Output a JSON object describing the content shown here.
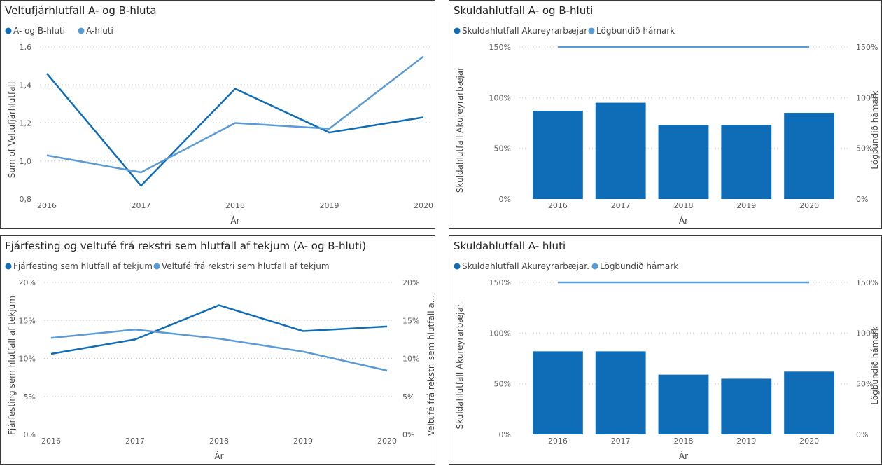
{
  "colors": {
    "dark": "#0f6db8",
    "light": "#5b9bd5",
    "bar": "#0f6db8"
  },
  "chart_data": [
    {
      "type": "line",
      "title": "Veltufjárhlutfall A- og B-hluta",
      "x": [
        "2016",
        "2017",
        "2018",
        "2019",
        "2020"
      ],
      "series": [
        {
          "name": "A- og B-hluti",
          "values": [
            1.46,
            0.87,
            1.38,
            1.15,
            1.23
          ]
        },
        {
          "name": "A-hluti",
          "values": [
            1.03,
            0.94,
            1.2,
            1.17,
            1.55
          ]
        }
      ],
      "xlabel": "Ár",
      "ylabel": "Sum of Veltufjárhlutfall",
      "ylim": [
        0.8,
        1.6
      ],
      "yticks": [
        "0,8",
        "1,0",
        "1,2",
        "1,4",
        "1,6"
      ],
      "grid": true,
      "legend": "top-left"
    },
    {
      "type": "bar",
      "title": "Skuldahlutfall A- og B-hluti",
      "categories": [
        "2016",
        "2017",
        "2018",
        "2019",
        "2020"
      ],
      "series": [
        {
          "name": "Skuldahlutfall Akureyrarbæjar",
          "kind": "bar",
          "values": [
            87,
            95,
            73,
            73,
            85
          ]
        },
        {
          "name": "Lögbundið hámark",
          "kind": "line",
          "values": [
            150,
            150,
            150,
            150,
            150
          ]
        }
      ],
      "xlabel": "Ár",
      "ylabel": "Skuldahlutfall Akureyrarbæjar",
      "y2label": "Lögbundið hámark",
      "ylim": [
        0,
        150
      ],
      "yticks": [
        "0%",
        "50%",
        "100%",
        "150%"
      ],
      "grid": true,
      "legend": "top-left"
    },
    {
      "type": "line",
      "title": "Fjárfesting og veltufé frá rekstri sem hlutfall af tekjum (A- og B-hluti)",
      "x": [
        "2016",
        "2017",
        "2018",
        "2019",
        "2020"
      ],
      "series": [
        {
          "name": "Fjárfesting sem hlutfall af tekjum",
          "values": [
            10.6,
            12.5,
            17.0,
            13.6,
            14.2
          ]
        },
        {
          "name": "Veltufé frá rekstri sem hlutfall af tekjum",
          "values": [
            12.7,
            13.8,
            12.6,
            10.9,
            8.4
          ]
        }
      ],
      "xlabel": "Ár",
      "ylabel": "Fjárfesting sem hlutfall af tekjum",
      "y2label": "Veltufé frá rekstri sem hlutfall a...",
      "ylim": [
        0,
        20
      ],
      "yticks": [
        "0%",
        "5%",
        "10%",
        "15%",
        "20%"
      ],
      "grid": true,
      "legend": "top-left"
    },
    {
      "type": "bar",
      "title": "Skuldahlutfall A- hluti",
      "categories": [
        "2016",
        "2017",
        "2018",
        "2019",
        "2020"
      ],
      "series": [
        {
          "name": "Skuldahlutfall Akureyrarbæjar.",
          "kind": "bar",
          "values": [
            82,
            82,
            59,
            55,
            62
          ]
        },
        {
          "name": "Lögbundið hámark",
          "kind": "line",
          "values": [
            150,
            150,
            150,
            150,
            150
          ]
        }
      ],
      "xlabel": "Ár",
      "ylabel": "Skuldahlutfall Akureyrarbæjar.",
      "y2label": "Lögbundið hámark",
      "ylim": [
        0,
        150
      ],
      "yticks": [
        "0%",
        "50%",
        "100%",
        "150%"
      ],
      "grid": true,
      "legend": "top-left"
    }
  ]
}
